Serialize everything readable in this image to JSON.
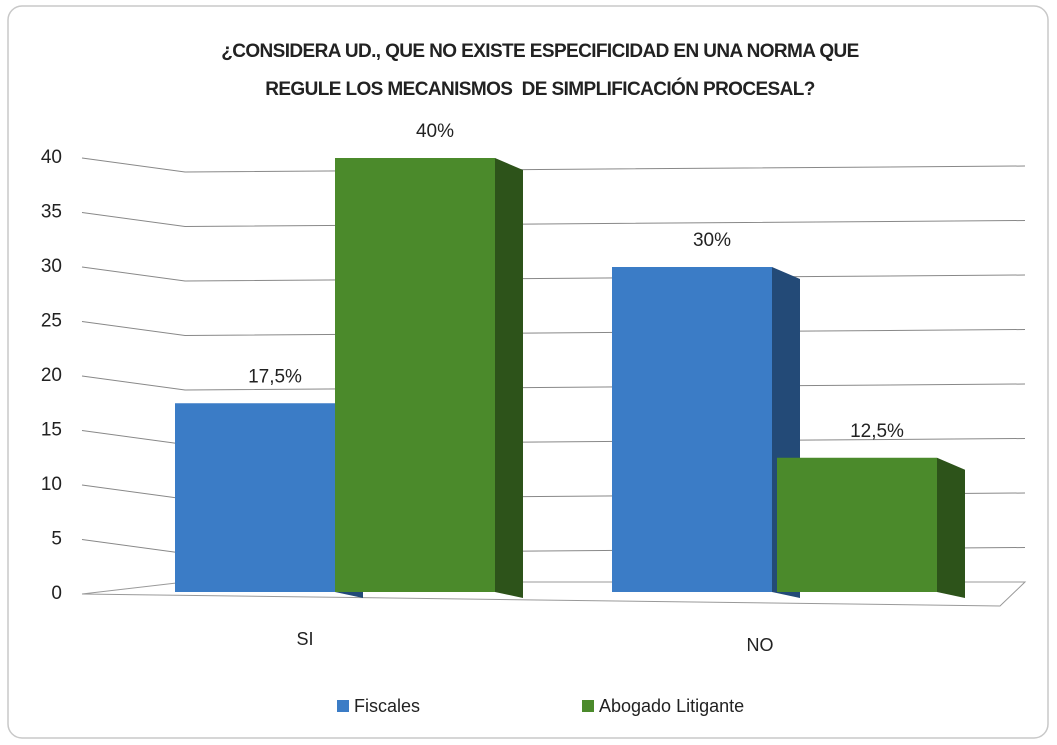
{
  "chart_data": {
    "type": "bar3d",
    "title": [
      "¿CONSIDERA UD., QUE NO EXISTE ESPECIFICIDAD EN UNA NORMA QUE",
      "REGULE LOS MECANISMOS  DE SIMPLIFICACIÓN PROCESAL?"
    ],
    "categories": [
      "SI",
      "NO"
    ],
    "series": [
      {
        "name": "Fiscales",
        "color": "#3b7cc6",
        "values": [
          17.5,
          30
        ],
        "value_labels": [
          "17,5%",
          "30%"
        ]
      },
      {
        "name": "Abogado Litigante",
        "color": "#4b8a2b",
        "values": [
          40,
          12.5
        ],
        "value_labels": [
          "40%",
          "12,5%"
        ]
      }
    ],
    "ylim": [
      0,
      40
    ],
    "yticks": [
      0,
      5,
      10,
      15,
      20,
      25,
      30,
      35,
      40
    ],
    "grid": true,
    "legend": "bottom"
  }
}
